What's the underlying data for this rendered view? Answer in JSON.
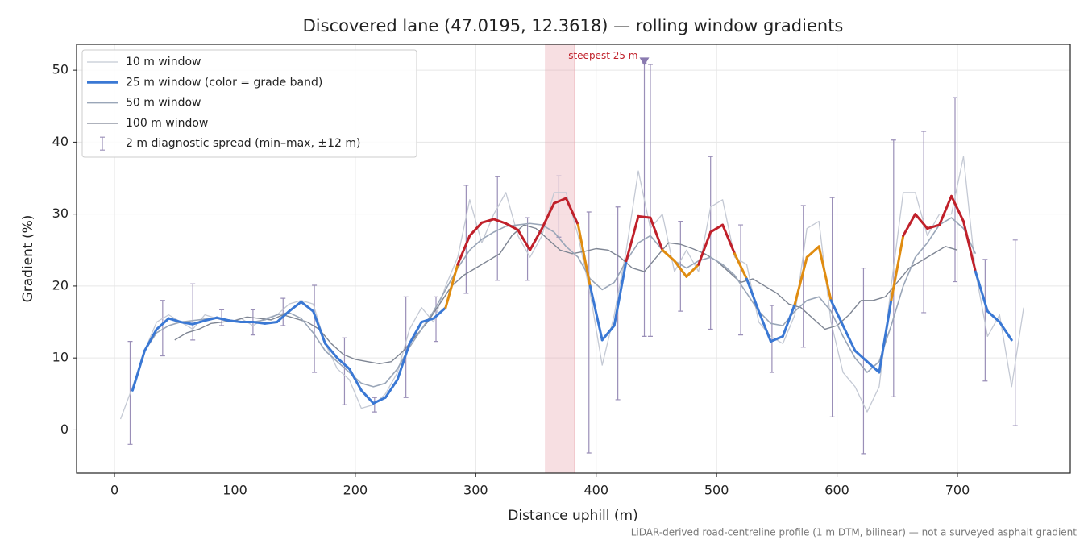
{
  "chart_data": {
    "type": "line",
    "title": "Discovered lane (47.0195, 12.3618) — rolling window gradients",
    "xlabel": "Distance uphill (m)",
    "ylabel": "Gradient (%)",
    "footnote": "LiDAR-derived road-centreline profile (1 m DTM, bilinear) — not a surveyed asphalt gradient",
    "xlim": [
      -31.5,
      793.7
    ],
    "ylim": [
      -6,
      53.6
    ],
    "xticks": [
      0,
      100,
      200,
      300,
      400,
      500,
      600,
      700
    ],
    "yticks": [
      0,
      10,
      20,
      30,
      40,
      50
    ],
    "grid": true,
    "legend": "upper left",
    "series": [
      {
        "name": "10 m window",
        "color": "#c4c9d4",
        "x": [
          5,
          15,
          25,
          35,
          45,
          55,
          65,
          75,
          85,
          95,
          105,
          115,
          125,
          135,
          145,
          155,
          165,
          175,
          185,
          195,
          205,
          215,
          225,
          235,
          245,
          255,
          265,
          275,
          285,
          295,
          305,
          315,
          325,
          335,
          345,
          355,
          365,
          375,
          385,
          395,
          405,
          415,
          425,
          435,
          445,
          455,
          465,
          475,
          485,
          495,
          505,
          515,
          525,
          535,
          545,
          555,
          565,
          575,
          585,
          595,
          605,
          615,
          625,
          635,
          645,
          655,
          665,
          675,
          685,
          695,
          705,
          715,
          725,
          735,
          745,
          755
        ],
        "values": [
          1.5,
          6,
          11,
          15,
          16,
          15,
          14,
          16,
          15.5,
          15,
          15.5,
          14.5,
          15.5,
          16,
          17.5,
          18,
          17.5,
          12,
          8.5,
          7,
          3,
          3.5,
          5,
          8,
          14,
          17,
          15,
          20,
          24,
          32,
          26,
          30,
          33,
          27,
          24,
          27,
          33,
          33,
          27,
          19,
          9,
          16,
          25,
          36,
          28,
          30,
          22,
          25,
          22,
          31,
          32,
          24,
          23,
          15,
          13,
          12,
          16,
          28,
          29,
          15,
          8,
          6,
          2.5,
          6,
          20,
          33,
          33,
          27,
          30,
          30,
          38,
          22,
          13,
          16,
          6,
          17
        ]
      },
      {
        "name": "25 m window (color = grade band)",
        "color": "#3a78d4",
        "band_thresholds": [
          20,
          25
        ],
        "band_colors": [
          "#3a78d4",
          "#e08c10",
          "#c0202a"
        ],
        "x": [
          15,
          25,
          35,
          45,
          55,
          65,
          75,
          85,
          95,
          105,
          115,
          125,
          135,
          145,
          155,
          165,
          175,
          185,
          195,
          205,
          215,
          225,
          235,
          245,
          255,
          265,
          275,
          285,
          295,
          305,
          315,
          325,
          335,
          345,
          355,
          365,
          375,
          385,
          395,
          405,
          415,
          425,
          435,
          445,
          455,
          465,
          475,
          485,
          495,
          505,
          515,
          525,
          535,
          545,
          555,
          565,
          575,
          585,
          595,
          605,
          615,
          625,
          635,
          645,
          655,
          665,
          675,
          685,
          695,
          705,
          715,
          725,
          735,
          745
        ],
        "values": [
          5.5,
          11,
          14,
          15.5,
          15,
          14.7,
          15.2,
          15.6,
          15.2,
          15,
          15,
          14.8,
          15,
          16.5,
          17.8,
          16.5,
          12,
          10,
          8.5,
          5.5,
          3.7,
          4.5,
          7,
          12,
          15,
          15.5,
          17,
          23,
          27,
          28.8,
          29.3,
          28.7,
          27.8,
          25,
          28,
          31.5,
          32.2,
          28.5,
          20,
          12.5,
          14.5,
          23.5,
          29.7,
          29.5,
          25,
          23.5,
          21.3,
          23,
          27.5,
          28.5,
          24.5,
          21,
          16.5,
          12.3,
          13,
          17.5,
          24,
          25.5,
          18,
          14.5,
          11,
          9.5,
          8,
          18,
          27,
          30,
          28,
          28.5,
          32.5,
          29,
          22,
          16.5,
          15,
          12.5
        ]
      },
      {
        "name": "50 m window",
        "color": "#9aa6b8",
        "x": [
          15,
          25,
          35,
          45,
          55,
          65,
          75,
          85,
          95,
          105,
          115,
          125,
          135,
          145,
          155,
          165,
          175,
          185,
          195,
          205,
          215,
          225,
          235,
          245,
          255,
          265,
          275,
          285,
          295,
          305,
          315,
          325,
          335,
          345,
          355,
          365,
          375,
          385,
          395,
          405,
          415,
          425,
          435,
          445,
          455,
          465,
          475,
          485,
          495,
          505,
          515,
          525,
          535,
          545,
          555,
          565,
          575,
          585,
          595,
          605,
          615,
          625,
          635,
          645,
          655,
          665,
          675,
          685,
          695,
          705,
          715
        ],
        "values": [
          5.5,
          11,
          13.5,
          14.5,
          15,
          15.2,
          15.4,
          15.5,
          15.3,
          15,
          15,
          15.3,
          16,
          16.3,
          15.5,
          13.5,
          11,
          9.5,
          8,
          6.5,
          6,
          6.5,
          8.5,
          11.5,
          14,
          16.5,
          19.5,
          22.5,
          25,
          26.5,
          27.5,
          28.3,
          28.5,
          28.7,
          28.5,
          27.5,
          25.5,
          24,
          21,
          19.5,
          20.5,
          23.5,
          26,
          27,
          25,
          23.5,
          22.5,
          23.5,
          24,
          23,
          21.5,
          19,
          16.5,
          14.8,
          14.5,
          16.5,
          18,
          18.5,
          16.5,
          13,
          10,
          8,
          9.5,
          14.5,
          20,
          24,
          26,
          28.5,
          29.5,
          28,
          24.5
        ]
      },
      {
        "name": "100 m window",
        "color": "#7e8593",
        "x": [
          50,
          60,
          70,
          80,
          90,
          100,
          110,
          120,
          130,
          140,
          150,
          160,
          170,
          180,
          190,
          200,
          210,
          220,
          230,
          240,
          250,
          260,
          270,
          280,
          290,
          300,
          310,
          320,
          330,
          340,
          350,
          360,
          370,
          380,
          390,
          400,
          410,
          420,
          430,
          440,
          450,
          460,
          470,
          480,
          490,
          500,
          510,
          520,
          530,
          540,
          550,
          560,
          570,
          580,
          590,
          600,
          610,
          620,
          630,
          640,
          650,
          660,
          670,
          680,
          690,
          700
        ],
        "values": [
          12.5,
          13.5,
          14,
          14.8,
          15,
          15.2,
          15.7,
          15.5,
          15.3,
          16,
          15.5,
          15,
          14,
          12,
          10.5,
          9.8,
          9.5,
          9.2,
          9.5,
          11,
          13,
          15,
          17.5,
          20,
          21.5,
          22.5,
          23.5,
          24.5,
          27,
          28.5,
          28,
          26.5,
          25,
          24.5,
          24.8,
          25.2,
          25,
          24,
          22.5,
          22,
          24,
          26,
          25.8,
          25.2,
          24.5,
          23.5,
          22,
          20.5,
          21,
          20,
          19,
          17.5,
          17,
          15.5,
          14,
          14.5,
          16,
          18,
          18,
          18.5,
          20.5,
          22.5,
          23.5,
          24.5,
          25.5,
          25
        ]
      }
    ],
    "error_bars": {
      "name": "2 m diagnostic spread (min–max, ±12 m)",
      "color": "#9a8fb8",
      "x": [
        13,
        40,
        65,
        89,
        115,
        140,
        166,
        191,
        216,
        242,
        267,
        292,
        318,
        343,
        369,
        394,
        418,
        440,
        445,
        470,
        495,
        520,
        546,
        572,
        596,
        622,
        647,
        672,
        698,
        723,
        748
      ],
      "min": [
        -2,
        10.3,
        12.5,
        14.5,
        13.2,
        14.5,
        8,
        3.5,
        2.5,
        4.5,
        12.3,
        19,
        20.8,
        20.8,
        26.8,
        -3.2,
        4.2,
        13,
        13,
        16.5,
        14,
        13.2,
        8,
        11.5,
        1.8,
        -3.3,
        4.6,
        16.3,
        20.6,
        6.8,
        0.6
      ],
      "max": [
        12.3,
        18,
        20.3,
        16.7,
        16.7,
        18.3,
        20.1,
        12.8,
        4.5,
        18.5,
        18.5,
        34,
        35.2,
        29.5,
        35.3,
        30.3,
        31,
        51,
        50.8,
        29,
        38,
        28.5,
        17.3,
        31.2,
        32.3,
        22.5,
        40.3,
        41.5,
        46.2,
        23.7,
        26.4
      ]
    },
    "highlight": {
      "xlim": [
        358,
        382
      ],
      "color": "#e8a3ab"
    },
    "annotation": {
      "text": "steepest 25 m",
      "x": 440,
      "y": 51.2,
      "color": "#c0202a",
      "marker_color": "#8a7ab0"
    }
  }
}
